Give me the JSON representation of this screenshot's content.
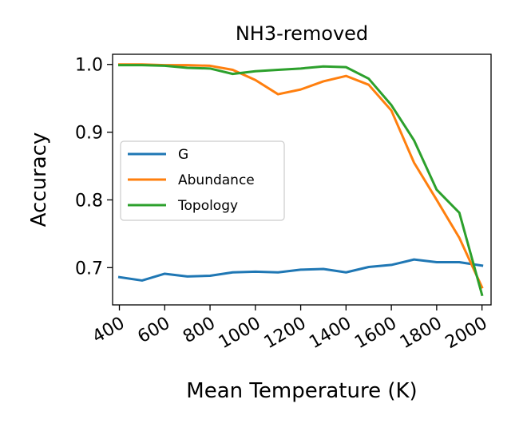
{
  "chart_data": {
    "type": "line",
    "title": "NH3-removed",
    "xlabel": "Mean Temperature (K)",
    "ylabel": "Accuracy",
    "xlim": [
      370,
      2040
    ],
    "ylim": [
      0.645,
      1.015
    ],
    "xticks": [
      400,
      600,
      800,
      1000,
      1200,
      1400,
      1600,
      1800,
      2000
    ],
    "xtick_labels": [
      "400",
      "600",
      "800",
      "1000",
      "1200",
      "1400",
      "1600",
      "1800",
      "2000"
    ],
    "xtick_rotation": "30 degrees",
    "yticks": [
      0.7,
      0.8,
      0.9,
      1.0
    ],
    "ytick_labels": [
      "0.7",
      "0.8",
      "0.9",
      "1.0"
    ],
    "grid": false,
    "legend_position": "center-left",
    "x": [
      400,
      500,
      600,
      700,
      800,
      900,
      1000,
      1100,
      1200,
      1300,
      1400,
      1500,
      1600,
      1700,
      1800,
      1900,
      2000
    ],
    "series": [
      {
        "name": "G",
        "color": "#1f77b4",
        "values": [
          0.686,
          0.681,
          0.691,
          0.687,
          0.688,
          0.693,
          0.694,
          0.693,
          0.697,
          0.698,
          0.693,
          0.701,
          0.704,
          0.712,
          0.708,
          0.708,
          0.703
        ]
      },
      {
        "name": "Abundance",
        "color": "#ff7f0e",
        "values": [
          1.0,
          1.0,
          0.999,
          0.999,
          0.998,
          0.992,
          0.977,
          0.956,
          0.963,
          0.975,
          0.983,
          0.97,
          0.932,
          0.855,
          0.8,
          0.744,
          0.671
        ]
      },
      {
        "name": "Topology",
        "color": "#2ca02c",
        "values": [
          0.999,
          0.999,
          0.998,
          0.995,
          0.994,
          0.986,
          0.99,
          0.992,
          0.994,
          0.997,
          0.996,
          0.979,
          0.94,
          0.888,
          0.815,
          0.781,
          0.66
        ]
      }
    ]
  }
}
